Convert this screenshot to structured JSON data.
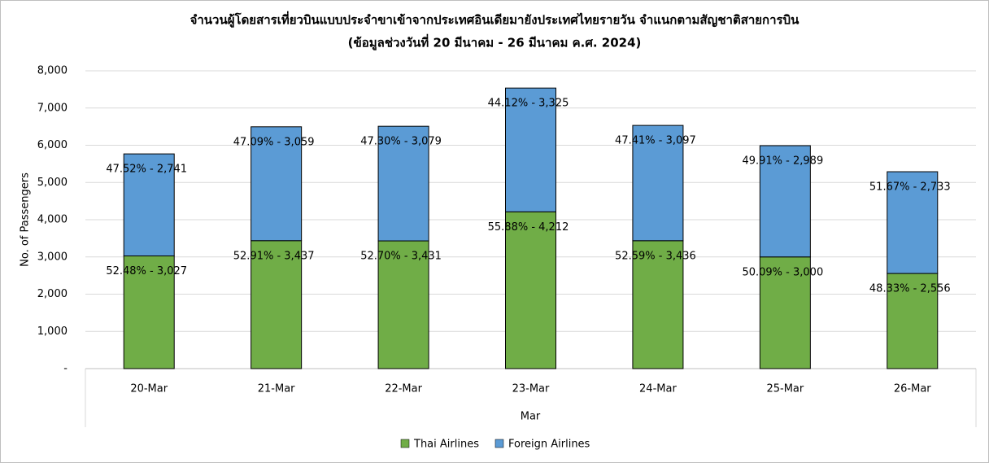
{
  "chart_data": {
    "type": "stacked_bar",
    "title": "จำนวนผู้โดยสารเที่ยวบินแบบประจำขาเข้าจากประเทศอินเดียมายังประเทศไทยรายวัน  จำแนกตามสัญชาติสายการบิน",
    "subtitle": "(ข้อมูลช่วงวันที่ 20 มีนาคม - 26 มีนาคม ค.ศ. 2024)",
    "x_label": "Mar",
    "y_label": "No. of Passengers",
    "categories": [
      "20-Mar",
      "21-Mar",
      "22-Mar",
      "23-Mar",
      "24-Mar",
      "25-Mar",
      "26-Mar"
    ],
    "series": [
      {
        "name": "Thai Airlines",
        "color": "#70ad47",
        "values": [
          3027,
          3437,
          3431,
          4212,
          3436,
          3000,
          2556
        ],
        "value_labels": [
          "52.48%  -  3,027",
          "52.91%  -  3,437",
          "52.70%  -  3,431",
          "55.88%  -  4,212",
          "52.59%  -  3,436",
          "50.09%  -  3,000",
          "48.33%  -  2,556"
        ]
      },
      {
        "name": "Foreign Airlines",
        "color": "#5b9bd5",
        "values": [
          2741,
          3059,
          3079,
          3325,
          3097,
          2989,
          2733
        ],
        "value_labels": [
          "47.52%  -  2,741",
          "47.09%  -  3,059",
          "47.30%  -  3,079",
          "44.12%  -  3,325",
          "47.41%  -  3,097",
          "49.91%  -  2,989",
          "51.67%  -  2,733"
        ]
      }
    ],
    "ylim": [
      0,
      8000
    ],
    "yticks": [
      {
        "value": 0,
        "label": "-"
      },
      {
        "value": 1000,
        "label": "1,000"
      },
      {
        "value": 2000,
        "label": "2,000"
      },
      {
        "value": 3000,
        "label": "3,000"
      },
      {
        "value": 4000,
        "label": "4,000"
      },
      {
        "value": 5000,
        "label": "5,000"
      },
      {
        "value": 6000,
        "label": "6,000"
      },
      {
        "value": 7000,
        "label": "7,000"
      },
      {
        "value": 8000,
        "label": "8,000"
      }
    ],
    "grid": true,
    "legend": "bottom"
  }
}
